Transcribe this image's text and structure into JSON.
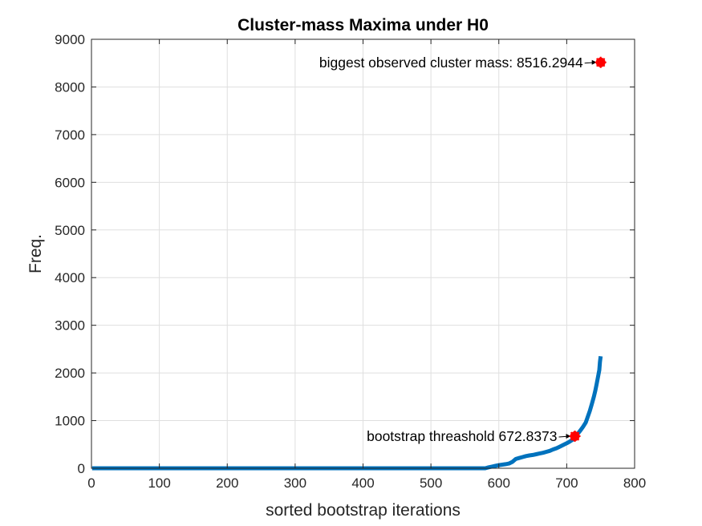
{
  "chart_data": {
    "type": "line",
    "title": "Cluster-mass Maxima under H0",
    "xlabel": "sorted bootstrap iterations",
    "ylabel": "Freq.",
    "xlim": [
      0,
      800
    ],
    "ylim": [
      0,
      9000
    ],
    "xticks": [
      0,
      100,
      200,
      300,
      400,
      500,
      600,
      700,
      800
    ],
    "yticks": [
      0,
      1000,
      2000,
      3000,
      4000,
      5000,
      6000,
      7000,
      8000,
      9000
    ],
    "grid": true,
    "line_color": "#0072BD",
    "marker_color": "#FF0000",
    "series": [
      {
        "x": [
          1,
          100,
          200,
          300,
          400,
          500,
          580,
          585,
          590,
          595,
          600,
          605,
          610,
          615,
          620,
          625,
          630,
          635,
          640,
          645,
          650,
          655,
          660,
          665,
          670,
          675,
          680,
          685,
          690,
          695,
          700,
          705,
          710,
          713,
          716,
          720,
          724,
          728,
          731,
          734,
          737,
          740,
          742,
          744,
          746,
          748,
          749,
          750
        ],
        "y": [
          0,
          0,
          0,
          0,
          0,
          0,
          0,
          20,
          35,
          50,
          65,
          75,
          85,
          100,
          135,
          195,
          215,
          235,
          255,
          270,
          280,
          295,
          310,
          325,
          345,
          365,
          395,
          420,
          455,
          490,
          525,
          565,
          610,
          673,
          720,
          790,
          870,
          960,
          1080,
          1200,
          1350,
          1500,
          1620,
          1760,
          1910,
          2060,
          2230,
          2350
        ]
      }
    ],
    "markers": [
      {
        "x": 712,
        "y": 672.8373,
        "label": "bootstrap threashold 672.8373"
      },
      {
        "x": 750,
        "y": 8516.2944,
        "label": "biggest observed cluster mass: 8516.2944"
      }
    ]
  }
}
